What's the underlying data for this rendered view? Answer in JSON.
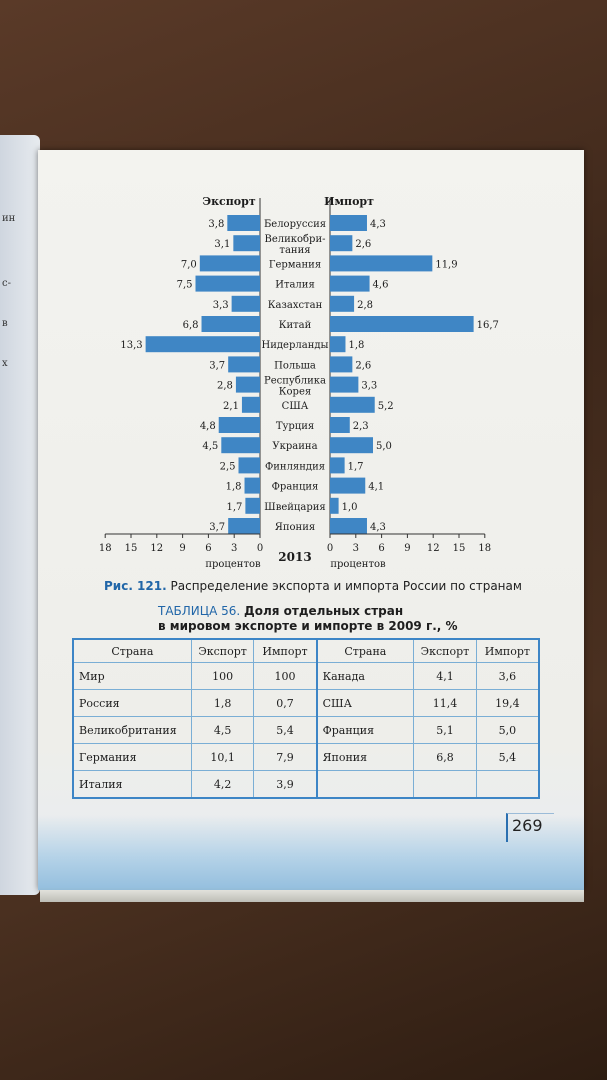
{
  "chart_data": {
    "type": "bar",
    "subtype": "diverging-horizontal",
    "left_header": "Экспорт",
    "right_header": "Импорт",
    "center_label": "2013",
    "axis_unit_label": "процентов",
    "ticks": [
      "18",
      "15",
      "12",
      "9",
      "6",
      "3",
      "0"
    ],
    "right_ticks": [
      "0",
      "3",
      "6",
      "9",
      "12",
      "15",
      "18"
    ],
    "xlim": [
      0,
      18
    ],
    "categories": [
      "Белоруссия",
      "Великобри-\nтания",
      "Германия",
      "Италия",
      "Казахстан",
      "Китай",
      "Нидерланды",
      "Польша",
      "Республика\nКорея",
      "США",
      "Турция",
      "Украина",
      "Финляндия",
      "Франция",
      "Швейцария",
      "Япония"
    ],
    "series": [
      {
        "name": "Экспорт",
        "values": [
          3.8,
          3.1,
          7.0,
          7.5,
          3.3,
          6.8,
          13.3,
          3.7,
          2.8,
          2.1,
          4.8,
          4.5,
          2.5,
          1.8,
          1.7,
          3.7
        ],
        "labels": [
          "3,8",
          "3,1",
          "7,0",
          "7,5",
          "3,3",
          "6,8",
          "13,3",
          "3,7",
          "2,8",
          "2,1",
          "4,8",
          "4,5",
          "2,5",
          "1,8",
          "1,7",
          "3,7"
        ]
      },
      {
        "name": "Импорт",
        "values": [
          4.3,
          2.6,
          11.9,
          4.6,
          2.8,
          16.7,
          1.8,
          2.6,
          3.3,
          5.2,
          2.3,
          5.0,
          1.7,
          4.1,
          1.0,
          4.3
        ],
        "labels": [
          "4,3",
          "2,6",
          "11,9",
          "4,6",
          "2,8",
          "16,7",
          "1,8",
          "2,6",
          "3,3",
          "5,2",
          "2,3",
          "5,0",
          "1,7",
          "4,1",
          "1,0",
          "4,3"
        ]
      }
    ],
    "color": "#3f86c5"
  },
  "figure": {
    "number": "Рис. 121.",
    "caption": "Распределение экспорта и импорта России по странам"
  },
  "table": {
    "number": "ТАБЛИЦА 56.",
    "title_line1": "Доля отдельных стран",
    "title_line2": "в мировом экспорте и импорте в 2009 г., %",
    "headers": [
      "Страна",
      "Экспорт",
      "Импорт",
      "Страна",
      "Экспорт",
      "Импорт"
    ],
    "rows": [
      [
        "Мир",
        "100",
        "100",
        "Канада",
        "4,1",
        "3,6"
      ],
      [
        "Россия",
        "1,8",
        "0,7",
        "США",
        "11,4",
        "19,4"
      ],
      [
        "Великобритания",
        "4,5",
        "5,4",
        "Франция",
        "5,1",
        "5,0"
      ],
      [
        "Германия",
        "10,1",
        "7,9",
        "Япония",
        "6,8",
        "5,4"
      ],
      [
        "Италия",
        "4,2",
        "3,9",
        "",
        "",
        ""
      ]
    ]
  },
  "page_number": "269",
  "prev_page_fragments": [
    "ин",
    "с-",
    "в",
    "х"
  ]
}
